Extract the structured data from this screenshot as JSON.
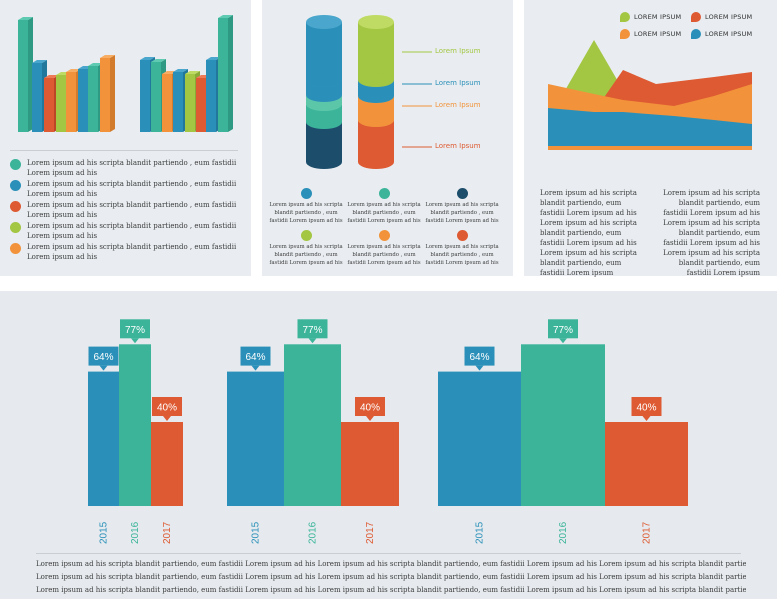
{
  "colors": {
    "teal": "#3bb49a",
    "blue": "#2b90b9",
    "red": "#de5a32",
    "green": "#a3c643",
    "orange": "#f2933b",
    "navy": "#1c4e6b",
    "mint": "#5cc6a8"
  },
  "panel1": {
    "legend": [
      {
        "color": "#3bb49a",
        "text": "Lorem ipsum ad his scripta blandit partiendo , eum fastidii Lorem ipsum ad his"
      },
      {
        "color": "#2b90b9",
        "text": "Lorem ipsum ad his scripta blandit partiendo , eum fastidii Lorem ipsum ad his"
      },
      {
        "color": "#de5a32",
        "text": "Lorem ipsum ad his scripta blandit partiendo , eum fastidii Lorem ipsum ad his"
      },
      {
        "color": "#a3c643",
        "text": "Lorem ipsum ad his scripta blandit partiendo , eum fastidii Lorem ipsum ad his"
      },
      {
        "color": "#f2933b",
        "text": "Lorem ipsum ad his scripta blandit partiendo , eum fastidii Lorem ipsum ad his"
      }
    ]
  },
  "panel2": {
    "labels": [
      "Lorem Ipsum",
      "Lorem Ipsum",
      "Lorem Ipsum",
      "Lorem Ipsum"
    ],
    "items": [
      {
        "color": "#2b90b9",
        "text": "Lorem ipsum ad his scripta blandit partiendo , eum fastidii Lorem ipsum ad his"
      },
      {
        "color": "#3bb49a",
        "text": "Lorem ipsum ad his scripta blandit partiendo , eum fastidii Lorem ipsum ad his"
      },
      {
        "color": "#1c4e6b",
        "text": "Lorem ipsum ad his scripta blandit partiendo , eum fastidii Lorem ipsum ad his"
      },
      {
        "color": "#a3c643",
        "text": "Lorem ipsum ad his scripta blandit partiendo , eum fastidii Lorem ipsum ad his"
      },
      {
        "color": "#f2933b",
        "text": "Lorem ipsum ad his scripta blandit partiendo , eum fastidii Lorem ipsum ad his"
      },
      {
        "color": "#de5a32",
        "text": "Lorem ipsum ad his scripta blandit partiendo , eum fastidii Lorem ipsum ad his"
      }
    ]
  },
  "panel3": {
    "legend": [
      {
        "color": "#a3c643",
        "text": "LOREM IPSUM"
      },
      {
        "color": "#de5a32",
        "text": "LOREM IPSUM"
      },
      {
        "color": "#f2933b",
        "text": "LOREM IPSUM"
      },
      {
        "color": "#2b90b9",
        "text": "LOREM IPSUM"
      }
    ],
    "para_left": "Lorem ipsum ad his scripta blandit partiendo, eum fastidii Lorem ipsum ad his Lorem ipsum ad his scripta blandit partiendo, eum fastidii Lorem ipsum ad his Lorem ipsum ad his scripta blandit partiendo, eum fastidii Lorem ipsum",
    "para_right": "Lorem ipsum ad his scripta blandit partiendo, eum fastidii Lorem ipsum ad his Lorem ipsum ad his scripta blandit partiendo, eum fastidii Lorem ipsum ad his Lorem ipsum ad his scripta blandit partiendo, eum fastidii Lorem ipsum"
  },
  "chart_data": [
    {
      "type": "bar",
      "categories": [
        "2015",
        "2016",
        "2017"
      ],
      "values": [
        64,
        77,
        40
      ],
      "value_labels": [
        "64%",
        "77%",
        "40%"
      ],
      "colors": [
        "#2b90b9",
        "#3bb49a",
        "#de5a32"
      ]
    },
    {
      "type": "bar",
      "categories": [
        "2015",
        "2016",
        "2017"
      ],
      "values": [
        64,
        77,
        40
      ],
      "value_labels": [
        "64%",
        "77%",
        "40%"
      ],
      "colors": [
        "#2b90b9",
        "#3bb49a",
        "#de5a32"
      ]
    },
    {
      "type": "bar",
      "categories": [
        "2015",
        "2016",
        "2017"
      ],
      "values": [
        64,
        77,
        40
      ],
      "value_labels": [
        "64%",
        "77%",
        "40%"
      ],
      "colors": [
        "#2b90b9",
        "#3bb49a",
        "#de5a32"
      ]
    }
  ],
  "footer": [
    "Lorem ipsum ad his scripta blandit partiendo, eum fastidii Lorem ipsum ad his Lorem ipsum ad his scripta blandit partiendo, eum fastidii Lorem ipsum ad his Lorem ipsum ad his scripta blandit partiendo, eum fastidii Lorem ipsum ad his Lorem ipsum ad his scripta",
    "Lorem ipsum ad his scripta blandit partiendo, eum fastidii Lorem ipsum ad his Lorem ipsum ad his scripta blandit partiendo, eum fastidii Lorem ipsum ad his Lorem ipsum ad his scripta blandit partiendo, eum fastidii Lorem ipsum ad his Lorem ipsum ad his scripta",
    "Lorem ipsum ad his scripta blandit partiendo, eum fastidii Lorem ipsum ad his Lorem ipsum ad his scripta blandit partiendo, eum fastidii Lorem ipsum ad his Lorem ipsum ad his scripta blandit partiendo, eum fastidii Lorem ipsum ad his Lorem ipsum ad his scripta"
  ]
}
